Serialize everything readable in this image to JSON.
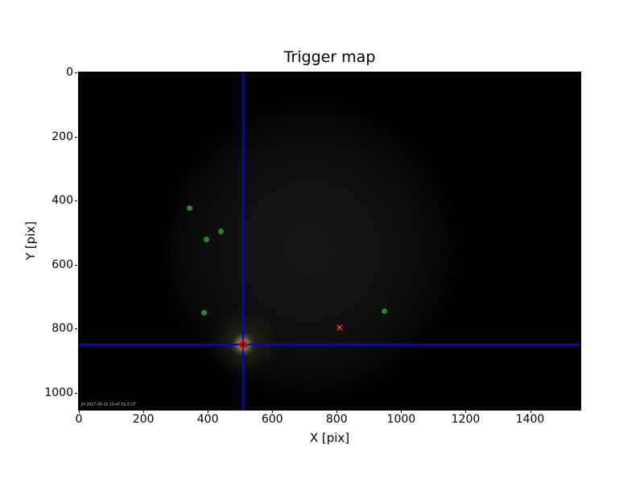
{
  "colors": {
    "figure_bg": "#ffffff",
    "plot_bg": "#000000",
    "crosshair": "#0000ff",
    "green_point": "#228b22",
    "x_marker": "#c81e00",
    "trigger_ring": "#e60000",
    "glow_core": "#f0e6b4",
    "vignette": "#141414",
    "tick_text": "#000000",
    "timestamp_text": "#bbbbbb"
  },
  "chart_data": {
    "type": "scatter",
    "title": "Trigger map",
    "xlabel": "X [pix]",
    "ylabel": "Y [pix]",
    "x_range": [
      0,
      1556
    ],
    "y_range": [
      0,
      1054
    ],
    "y_axis_inverted": true,
    "x_ticks": [
      0,
      200,
      400,
      600,
      800,
      1000,
      1200,
      1400
    ],
    "y_ticks": [
      0,
      200,
      400,
      600,
      800,
      1000
    ],
    "grid": false,
    "legend": null,
    "annotation": "JH 2017-05-15 20:47:01.5 UT",
    "crosshair": {
      "x": 510,
      "y": 851
    },
    "camera_vignette": {
      "center_x": 714,
      "center_y": 556,
      "radius": 455
    },
    "star_glow": {
      "x": 510,
      "y": 851,
      "inner_radius": 15,
      "outer_radius": 45
    },
    "series": [
      {
        "name": "green-points",
        "marker": "circle",
        "size": 7,
        "points": [
          [
            344,
            423
          ],
          [
            397,
            523
          ],
          [
            442,
            498
          ],
          [
            389,
            750
          ],
          [
            947,
            745
          ],
          [
            522,
            853
          ]
        ]
      },
      {
        "name": "x-marker",
        "marker": "x",
        "size": 10,
        "points": [
          [
            809,
            797
          ]
        ]
      },
      {
        "name": "trigger-ring",
        "marker": "ring",
        "size": 10,
        "points": [
          [
            510,
            851
          ]
        ]
      }
    ]
  }
}
